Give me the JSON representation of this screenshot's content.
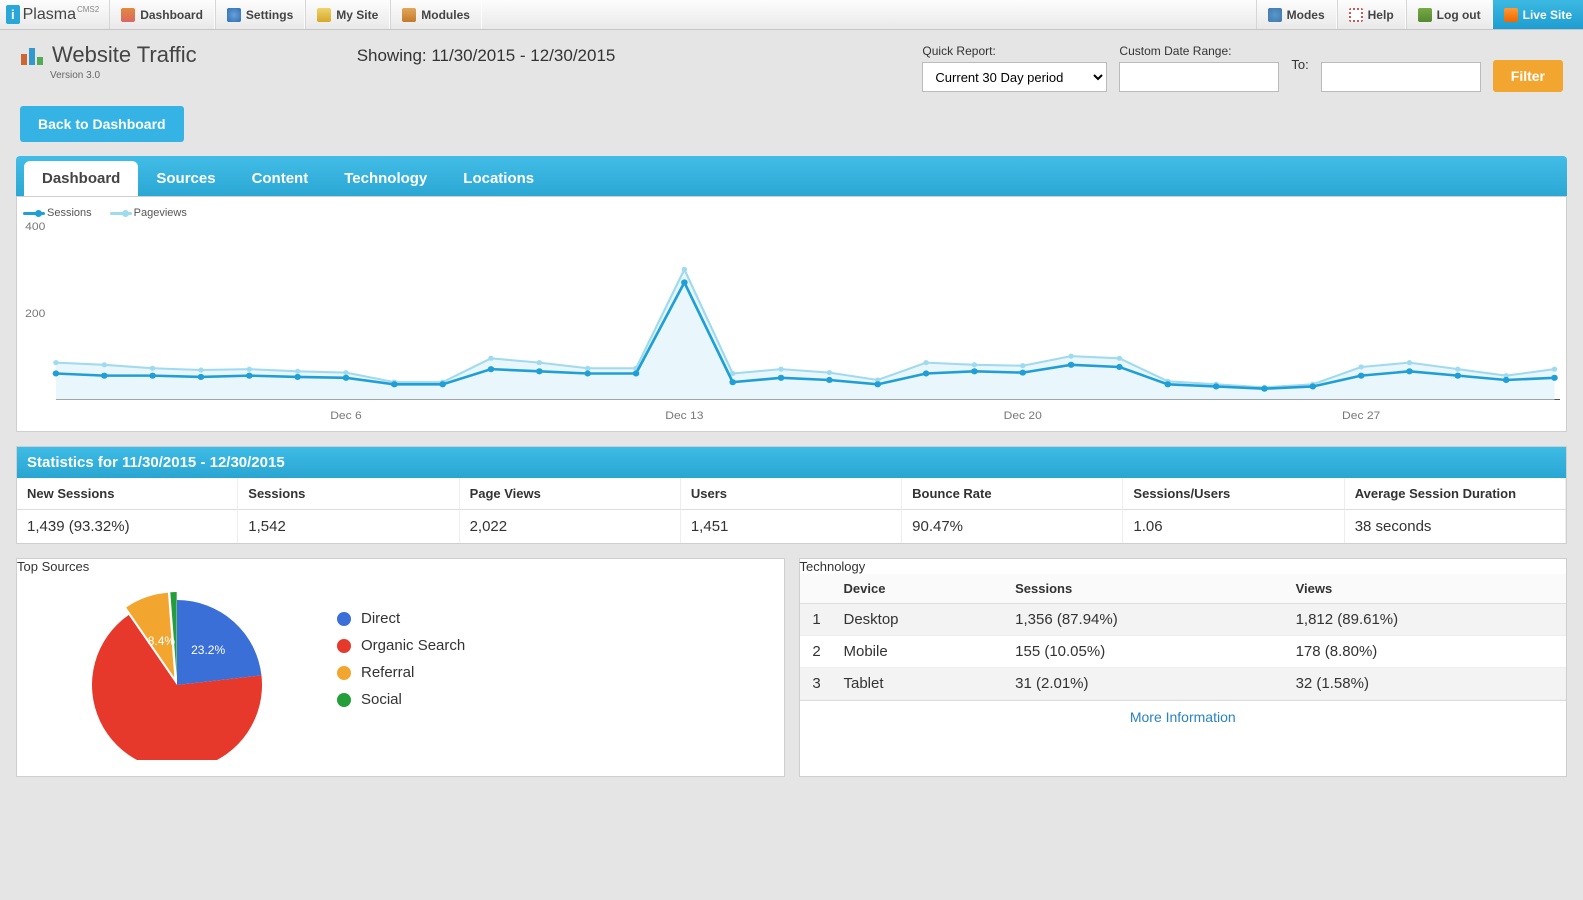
{
  "topnav": {
    "brand": "Plasma",
    "brand_sup": "CMS2",
    "left": [
      "Dashboard",
      "Settings",
      "My Site",
      "Modules"
    ],
    "right": [
      "Modes",
      "Help",
      "Log out",
      "Live Site"
    ]
  },
  "header": {
    "title": "Website Traffic",
    "version": "Version 3.0",
    "showing": "Showing: 11/30/2015 - 12/30/2015",
    "quick_label": "Quick Report:",
    "quick_value": "Current 30 Day period",
    "custom_label": "Custom Date Range:",
    "to_label": "To:",
    "filter_btn": "Filter",
    "back_btn": "Back to Dashboard"
  },
  "tabs": [
    "Dashboard",
    "Sources",
    "Content",
    "Technology",
    "Locations"
  ],
  "active_tab": 0,
  "chart": {
    "type": "line",
    "series": [
      {
        "name": "Sessions",
        "color": "#1f9fd6",
        "values": [
          60,
          55,
          55,
          52,
          55,
          52,
          50,
          35,
          35,
          70,
          65,
          60,
          60,
          270,
          40,
          50,
          45,
          35,
          60,
          65,
          62,
          80,
          75,
          35,
          30,
          25,
          30,
          55,
          65,
          55,
          45,
          50
        ]
      },
      {
        "name": "Pageviews",
        "color": "#9fdaef",
        "values": [
          85,
          80,
          72,
          68,
          70,
          65,
          62,
          40,
          40,
          95,
          85,
          72,
          72,
          300,
          60,
          70,
          62,
          45,
          85,
          80,
          78,
          100,
          95,
          42,
          35,
          28,
          35,
          75,
          85,
          70,
          55,
          70
        ]
      }
    ],
    "ylim": [
      0,
      400
    ],
    "yticks": [
      200,
      400
    ],
    "x_labels": [
      {
        "i": 6,
        "t": "Dec 6"
      },
      {
        "i": 13,
        "t": "Dec 13"
      },
      {
        "i": 20,
        "t": "Dec 20"
      },
      {
        "i": 27,
        "t": "Dec 27"
      }
    ],
    "grid_color": "#e0e0e0",
    "bg": "#ffffff",
    "area_fill": "#e9f6fc"
  },
  "stats": {
    "title": "Statistics for 11/30/2015 - 12/30/2015",
    "cols": [
      "New Sessions",
      "Sessions",
      "Page Views",
      "Users",
      "Bounce Rate",
      "Sessions/Users",
      "Average Session Duration"
    ],
    "vals": [
      "1,439 (93.32%)",
      "1,542",
      "2,022",
      "1,451",
      "90.47%",
      "1.06",
      "38 seconds"
    ]
  },
  "sources": {
    "title": "Top Sources",
    "pie": {
      "slices": [
        {
          "label": "Direct",
          "pct": 23.2,
          "color": "#3a6fd8"
        },
        {
          "label": "Organic Search",
          "pct": 67.2,
          "color": "#e6392c"
        },
        {
          "label": "Referral",
          "pct": 8.4,
          "color": "#f2a630"
        },
        {
          "label": "Social",
          "pct": 1.2,
          "color": "#239e3b"
        }
      ],
      "visible_labels": [
        {
          "slice": 0,
          "text": "23.2%"
        },
        {
          "slice": 2,
          "text": "8.4%"
        }
      ]
    }
  },
  "tech": {
    "title": "Technology",
    "cols": [
      "",
      "Device",
      "Sessions",
      "Views"
    ],
    "rows": [
      [
        "1",
        "Desktop",
        "1,356 (87.94%)",
        "1,812 (89.61%)"
      ],
      [
        "2",
        "Mobile",
        "155 (10.05%)",
        "178 (8.80%)"
      ],
      [
        "3",
        "Tablet",
        "31 (2.01%)",
        "32 (1.58%)"
      ]
    ],
    "more": "More Information"
  },
  "colors": {
    "accent": "#2ba7d4",
    "orange": "#f2a630"
  }
}
